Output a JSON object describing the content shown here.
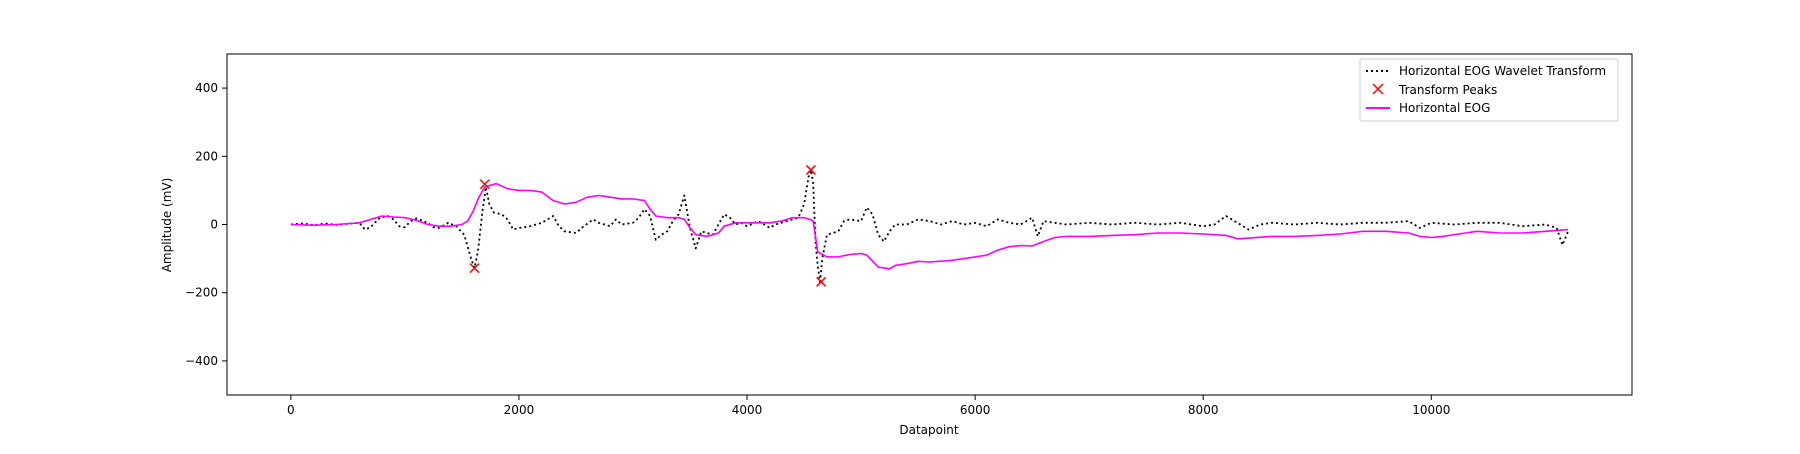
{
  "chart_data": {
    "type": "line",
    "title": "",
    "xlabel": "Datapoint",
    "ylabel": "Amplitude (mV)",
    "xlim": [
      -560,
      11760
    ],
    "ylim": [
      -500,
      500
    ],
    "xticks": [
      0,
      2000,
      4000,
      6000,
      8000,
      10000
    ],
    "yticks": [
      -400,
      -200,
      0,
      200,
      400
    ],
    "tick_labels": {
      "x": [
        "0",
        "2000",
        "4000",
        "6000",
        "8000",
        "10000"
      ],
      "y": [
        "−400",
        "−200",
        "0",
        "200",
        "400"
      ]
    },
    "grid": false,
    "legend_position": "top-right",
    "legend": [
      {
        "label": "Horizontal EOG Wavelet Transform",
        "style": "dotted",
        "color": "#000000"
      },
      {
        "label": "Transform Peaks",
        "style": "x-marker",
        "color": "#ff0000"
      },
      {
        "label": "Horizontal EOG",
        "style": "solid",
        "color": "#ff00ff"
      }
    ],
    "series": [
      {
        "name": "Horizontal EOG Wavelet Transform",
        "color": "#000000",
        "style": "dotted",
        "points": [
          [
            0,
            0
          ],
          [
            100,
            3
          ],
          [
            200,
            -2
          ],
          [
            300,
            3
          ],
          [
            400,
            -1
          ],
          [
            500,
            2
          ],
          [
            600,
            5
          ],
          [
            650,
            -15
          ],
          [
            700,
            -8
          ],
          [
            780,
            20
          ],
          [
            850,
            25
          ],
          [
            900,
            15
          ],
          [
            950,
            -5
          ],
          [
            1000,
            -8
          ],
          [
            1050,
            10
          ],
          [
            1100,
            18
          ],
          [
            1200,
            5
          ],
          [
            1250,
            -8
          ],
          [
            1300,
            -10
          ],
          [
            1380,
            5
          ],
          [
            1450,
            -5
          ],
          [
            1520,
            -30
          ],
          [
            1580,
            -100
          ],
          [
            1610,
            -128
          ],
          [
            1640,
            -80
          ],
          [
            1680,
            40
          ],
          [
            1710,
            110
          ],
          [
            1740,
            60
          ],
          [
            1780,
            35
          ],
          [
            1850,
            30
          ],
          [
            1900,
            15
          ],
          [
            1950,
            -15
          ],
          [
            2000,
            -10
          ],
          [
            2100,
            -5
          ],
          [
            2200,
            5
          ],
          [
            2300,
            25
          ],
          [
            2350,
            -5
          ],
          [
            2400,
            -20
          ],
          [
            2500,
            -25
          ],
          [
            2550,
            -10
          ],
          [
            2650,
            15
          ],
          [
            2700,
            5
          ],
          [
            2800,
            -5
          ],
          [
            2850,
            15
          ],
          [
            2900,
            0
          ],
          [
            3000,
            5
          ],
          [
            3050,
            20
          ],
          [
            3100,
            45
          ],
          [
            3150,
            25
          ],
          [
            3200,
            -45
          ],
          [
            3250,
            -30
          ],
          [
            3300,
            -20
          ],
          [
            3350,
            10
          ],
          [
            3400,
            30
          ],
          [
            3450,
            85
          ],
          [
            3500,
            -10
          ],
          [
            3550,
            -70
          ],
          [
            3600,
            -20
          ],
          [
            3700,
            -30
          ],
          [
            3800,
            30
          ],
          [
            3850,
            20
          ],
          [
            3900,
            0
          ],
          [
            3950,
            5
          ],
          [
            4000,
            -5
          ],
          [
            4100,
            10
          ],
          [
            4200,
            -10
          ],
          [
            4250,
            0
          ],
          [
            4300,
            5
          ],
          [
            4400,
            15
          ],
          [
            4450,
            20
          ],
          [
            4500,
            60
          ],
          [
            4540,
            140
          ],
          [
            4560,
            160
          ],
          [
            4580,
            120
          ],
          [
            4600,
            -50
          ],
          [
            4620,
            -120
          ],
          [
            4640,
            -168
          ],
          [
            4660,
            -100
          ],
          [
            4700,
            -30
          ],
          [
            4800,
            -20
          ],
          [
            4850,
            10
          ],
          [
            4900,
            15
          ],
          [
            5000,
            10
          ],
          [
            5050,
            50
          ],
          [
            5100,
            30
          ],
          [
            5150,
            -30
          ],
          [
            5200,
            -50
          ],
          [
            5250,
            -20
          ],
          [
            5300,
            0
          ],
          [
            5400,
            0
          ],
          [
            5500,
            15
          ],
          [
            5600,
            10
          ],
          [
            5700,
            0
          ],
          [
            5800,
            10
          ],
          [
            5900,
            0
          ],
          [
            6000,
            5
          ],
          [
            6100,
            -5
          ],
          [
            6150,
            5
          ],
          [
            6200,
            15
          ],
          [
            6300,
            5
          ],
          [
            6400,
            0
          ],
          [
            6500,
            20
          ],
          [
            6550,
            -35
          ],
          [
            6600,
            10
          ],
          [
            6700,
            5
          ],
          [
            6800,
            0
          ],
          [
            7000,
            5
          ],
          [
            7200,
            0
          ],
          [
            7400,
            5
          ],
          [
            7600,
            0
          ],
          [
            7800,
            5
          ],
          [
            8000,
            -5
          ],
          [
            8100,
            0
          ],
          [
            8200,
            25
          ],
          [
            8300,
            5
          ],
          [
            8400,
            -15
          ],
          [
            8500,
            0
          ],
          [
            8600,
            5
          ],
          [
            8800,
            0
          ],
          [
            9000,
            5
          ],
          [
            9200,
            0
          ],
          [
            9400,
            5
          ],
          [
            9600,
            5
          ],
          [
            9800,
            10
          ],
          [
            9900,
            -10
          ],
          [
            10000,
            5
          ],
          [
            10200,
            0
          ],
          [
            10400,
            5
          ],
          [
            10600,
            5
          ],
          [
            10800,
            -5
          ],
          [
            11000,
            0
          ],
          [
            11100,
            -10
          ],
          [
            11150,
            -60
          ],
          [
            11200,
            -20
          ]
        ]
      },
      {
        "name": "Transform Peaks",
        "color": "#ff0000",
        "style": "x-marker",
        "points": [
          [
            1610,
            -128
          ],
          [
            1700,
            118
          ],
          [
            4560,
            160
          ],
          [
            4650,
            -168
          ]
        ]
      },
      {
        "name": "Horizontal EOG",
        "color": "#ff00ff",
        "style": "solid",
        "points": [
          [
            0,
            0
          ],
          [
            200,
            -2
          ],
          [
            400,
            0
          ],
          [
            600,
            5
          ],
          [
            700,
            15
          ],
          [
            800,
            25
          ],
          [
            900,
            22
          ],
          [
            1000,
            20
          ],
          [
            1100,
            12
          ],
          [
            1200,
            0
          ],
          [
            1300,
            -5
          ],
          [
            1400,
            -5
          ],
          [
            1500,
            0
          ],
          [
            1550,
            10
          ],
          [
            1600,
            40
          ],
          [
            1650,
            80
          ],
          [
            1700,
            110
          ],
          [
            1750,
            115
          ],
          [
            1800,
            120
          ],
          [
            1900,
            105
          ],
          [
            2000,
            100
          ],
          [
            2100,
            100
          ],
          [
            2200,
            95
          ],
          [
            2300,
            70
          ],
          [
            2400,
            60
          ],
          [
            2500,
            65
          ],
          [
            2600,
            80
          ],
          [
            2700,
            85
          ],
          [
            2800,
            80
          ],
          [
            2900,
            75
          ],
          [
            3000,
            75
          ],
          [
            3100,
            70
          ],
          [
            3150,
            45
          ],
          [
            3200,
            25
          ],
          [
            3300,
            20
          ],
          [
            3400,
            20
          ],
          [
            3450,
            15
          ],
          [
            3500,
            -10
          ],
          [
            3550,
            -30
          ],
          [
            3650,
            -35
          ],
          [
            3700,
            -30
          ],
          [
            3750,
            -25
          ],
          [
            3800,
            -5
          ],
          [
            3900,
            5
          ],
          [
            4000,
            5
          ],
          [
            4100,
            5
          ],
          [
            4200,
            5
          ],
          [
            4300,
            10
          ],
          [
            4400,
            20
          ],
          [
            4500,
            20
          ],
          [
            4550,
            15
          ],
          [
            4580,
            10
          ],
          [
            4620,
            -80
          ],
          [
            4700,
            -95
          ],
          [
            4800,
            -95
          ],
          [
            4900,
            -88
          ],
          [
            5000,
            -85
          ],
          [
            5050,
            -90
          ],
          [
            5150,
            -125
          ],
          [
            5250,
            -130
          ],
          [
            5300,
            -120
          ],
          [
            5400,
            -115
          ],
          [
            5500,
            -108
          ],
          [
            5600,
            -110
          ],
          [
            5800,
            -105
          ],
          [
            6000,
            -95
          ],
          [
            6100,
            -90
          ],
          [
            6200,
            -75
          ],
          [
            6300,
            -65
          ],
          [
            6400,
            -62
          ],
          [
            6500,
            -63
          ],
          [
            6600,
            -50
          ],
          [
            6700,
            -38
          ],
          [
            6800,
            -35
          ],
          [
            7000,
            -35
          ],
          [
            7200,
            -32
          ],
          [
            7400,
            -30
          ],
          [
            7600,
            -25
          ],
          [
            7800,
            -25
          ],
          [
            8000,
            -28
          ],
          [
            8200,
            -32
          ],
          [
            8300,
            -42
          ],
          [
            8400,
            -40
          ],
          [
            8600,
            -35
          ],
          [
            8800,
            -35
          ],
          [
            9000,
            -32
          ],
          [
            9200,
            -28
          ],
          [
            9400,
            -20
          ],
          [
            9600,
            -20
          ],
          [
            9800,
            -25
          ],
          [
            9900,
            -35
          ],
          [
            10000,
            -38
          ],
          [
            10100,
            -35
          ],
          [
            10300,
            -25
          ],
          [
            10400,
            -20
          ],
          [
            10600,
            -25
          ],
          [
            10800,
            -25
          ],
          [
            11000,
            -20
          ],
          [
            11200,
            -15
          ]
        ]
      }
    ]
  }
}
